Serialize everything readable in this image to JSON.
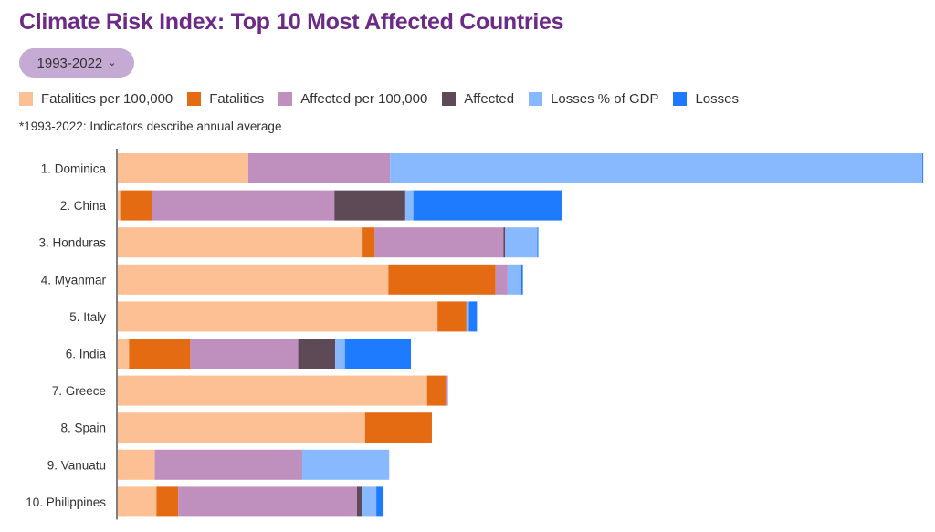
{
  "header": {
    "title": "Climate Risk Index: Top 10 Most Affected Countries",
    "period_dropdown": {
      "selected": "1993-2022",
      "icon": "chevron-down-icon"
    },
    "note": "*1993-2022: Indicators describe  annual average"
  },
  "legend": [
    {
      "label": "Fatalities per 100,000",
      "color": "#fdc094"
    },
    {
      "label": "Fatalities",
      "color": "#e56b12"
    },
    {
      "label": "Affected per 100,000",
      "color": "#bf8fbe"
    },
    {
      "label": "Affected",
      "color": "#5e4a57"
    },
    {
      "label": "Losses % of GDP",
      "color": "#88b8fe"
    },
    {
      "label": "Losses",
      "color": "#1f7bfd"
    }
  ],
  "chart_data": {
    "type": "bar",
    "orientation": "horizontal",
    "stacked": true,
    "title": "Climate Risk Index: Top 10 Most Affected Countries",
    "xlabel": "",
    "ylabel": "",
    "units": "relative score (estimated; no axis ticks shown)",
    "xlim": [
      0,
      100
    ],
    "grid": false,
    "legend_position": "top-left",
    "categories": [
      "1. Dominica",
      "2. China",
      "3. Honduras",
      "4. Myanmar",
      "5. Italy",
      "6. India",
      "7. Greece",
      "8. Spain",
      "9. Vanuatu",
      "10. Philippines"
    ],
    "series": [
      {
        "name": "Fatalities per 100,000",
        "color": "#fdc094",
        "values": [
          16.2,
          0.3,
          30.4,
          33.6,
          39.7,
          1.4,
          38.4,
          30.7,
          4.6,
          4.8
        ]
      },
      {
        "name": "Fatalities",
        "color": "#e56b12",
        "values": [
          0,
          4.0,
          1.5,
          13.3,
          3.6,
          7.6,
          2.3,
          8.3,
          0,
          2.7
        ]
      },
      {
        "name": "Affected per 100,000",
        "color": "#bf8fbe",
        "values": [
          17.6,
          22.6,
          16.0,
          1.5,
          0,
          13.4,
          0.3,
          0,
          18.3,
          22.2
        ]
      },
      {
        "name": "Affected",
        "color": "#5e4a57",
        "values": [
          0,
          8.8,
          0.2,
          0,
          0,
          4.6,
          0,
          0,
          0,
          0.7
        ]
      },
      {
        "name": "Losses % of GDP",
        "color": "#88b8fe",
        "values": [
          66.1,
          1.0,
          4.0,
          1.7,
          0.3,
          1.2,
          0,
          0,
          10.8,
          1.7
        ]
      },
      {
        "name": "Losses",
        "color": "#1f7bfd",
        "values": [
          0.1,
          18.5,
          0.1,
          0.2,
          1.0,
          8.2,
          0,
          0,
          0,
          0.9
        ]
      }
    ]
  }
}
